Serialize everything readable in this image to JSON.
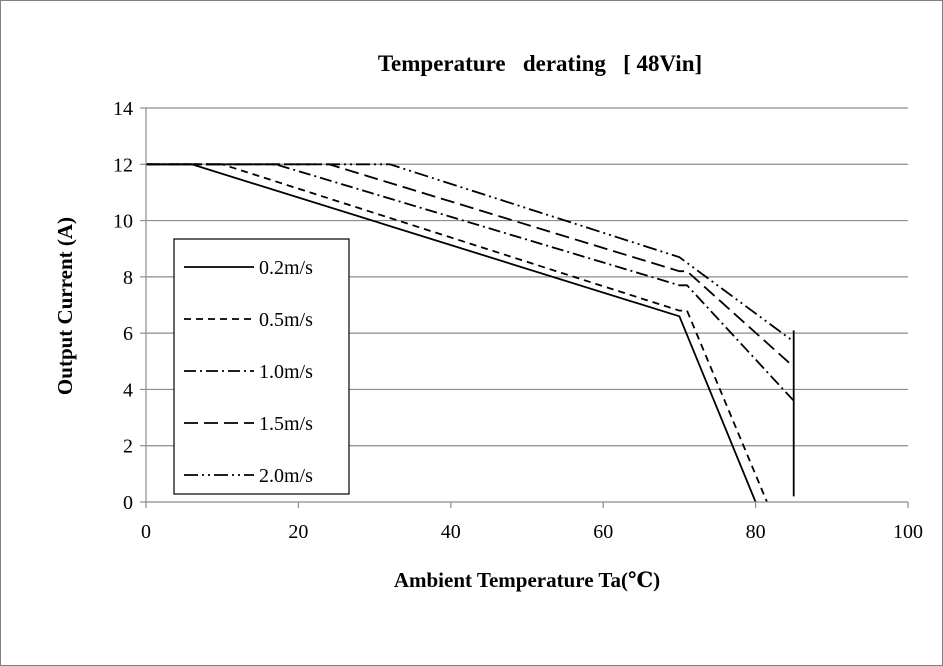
{
  "chart_data": {
    "type": "line",
    "title": "Temperature   derating   [ 48Vin]",
    "xlabel": "Ambient Temperature Ta(℃)",
    "ylabel": "Output Current (A)",
    "xlim": [
      0,
      100
    ],
    "ylim": [
      0,
      14
    ],
    "xticks": [
      0,
      20,
      40,
      60,
      80,
      100
    ],
    "yticks": [
      0,
      2,
      4,
      6,
      8,
      10,
      12,
      14
    ],
    "grid": "horizontal",
    "legend_position": "left",
    "series": [
      {
        "name": "0.2m/s",
        "dash": "none",
        "points": [
          [
            0,
            12
          ],
          [
            6,
            12
          ],
          [
            70,
            6.6
          ],
          [
            80,
            0
          ]
        ]
      },
      {
        "name": "0.5m/s",
        "dash": "7,5",
        "points": [
          [
            0,
            12
          ],
          [
            10,
            12
          ],
          [
            70,
            6.8
          ],
          [
            71,
            6.8
          ],
          [
            81.5,
            0
          ]
        ]
      },
      {
        "name": "1.0m/s",
        "dash": "12,4,2,4",
        "points": [
          [
            0,
            12
          ],
          [
            17,
            12
          ],
          [
            70,
            7.7
          ],
          [
            71,
            7.7
          ],
          [
            85,
            3.6
          ]
        ]
      },
      {
        "name": "1.5m/s",
        "dash": "14,6",
        "points": [
          [
            0,
            12
          ],
          [
            24,
            12
          ],
          [
            70,
            8.2
          ],
          [
            71,
            8.2
          ],
          [
            85,
            4.8
          ]
        ]
      },
      {
        "name": "2.0m/s",
        "dash": "14,4,2,4,2,4",
        "points": [
          [
            0,
            12
          ],
          [
            32,
            12
          ],
          [
            70,
            8.7
          ],
          [
            71,
            8.5
          ],
          [
            85,
            5.7
          ]
        ]
      }
    ],
    "vertical_line": {
      "x": 85,
      "y_from": 0.2,
      "y_to": 6.1
    }
  }
}
